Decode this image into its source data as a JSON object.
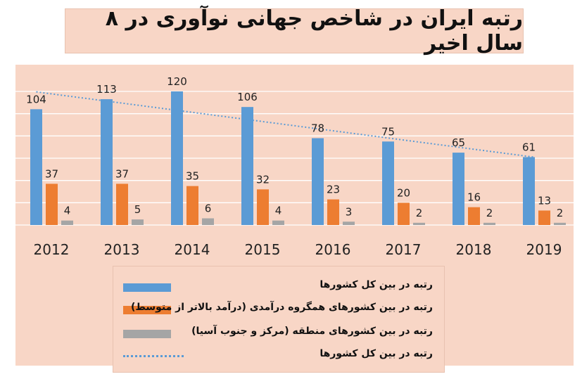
{
  "title": "رتبه ایران در شاخص جهانی نوآوری در ۸ سال اخیر",
  "colors": {
    "background": "#f8d6c6",
    "series_blue": "#5b9bd5",
    "series_orange": "#ed7d31",
    "series_gray": "#a5a5a5",
    "trendline": "#5b9bd5"
  },
  "legend": {
    "position": "bottom",
    "items": [
      "رتبه در بین کل کشورها",
      "رتبه در بین کشورهای همگروه درآمدی (درآمد بالاتر از متوسط)",
      "رتبه در بین کشورهای منطقه (مرکز و جنوب آسیا)",
      "رتبه در بین کل کشورها"
    ]
  },
  "chart_data": {
    "type": "bar",
    "title": "رتبه ایران در شاخص جهانی نوآوری در ۸ سال اخیر",
    "categories": [
      "2012",
      "2013",
      "2014",
      "2015",
      "2016",
      "2017",
      "2018",
      "2019"
    ],
    "series": [
      {
        "name": "رتبه در بین کل کشورها",
        "values": [
          104,
          113,
          120,
          106,
          78,
          75,
          65,
          61
        ]
      },
      {
        "name": "رتبه در بین کشورهای همگروه درآمدی (درآمد بالاتر از متوسط)",
        "values": [
          37,
          37,
          35,
          32,
          23,
          20,
          16,
          13
        ]
      },
      {
        "name": "رتبه در بین کشورهای منطقه (مرکز و جنوب آسیا)",
        "values": [
          4,
          5,
          6,
          4,
          3,
          2,
          2,
          2
        ]
      }
    ],
    "trendline": {
      "name": "رتبه در بین کل کشورها",
      "type": "linear",
      "series": "رتبه در بین کل کشورها"
    },
    "ylim": [
      0,
      120
    ],
    "grid": true,
    "legend": "bottom"
  }
}
